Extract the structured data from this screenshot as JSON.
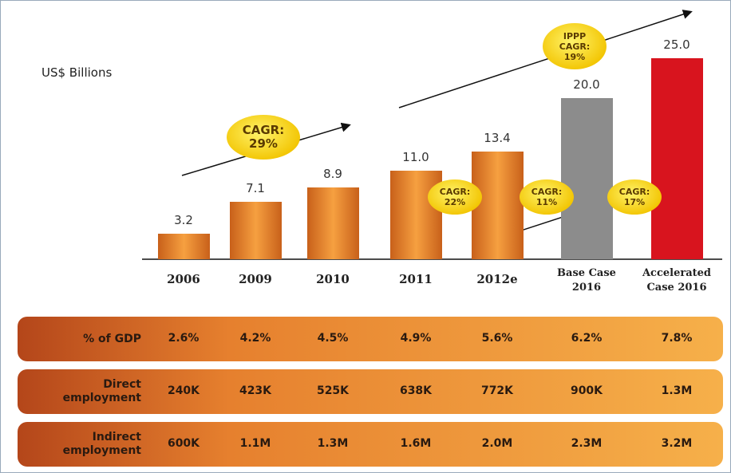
{
  "chart_data": {
    "type": "bar",
    "subtitle": "US$ Billions",
    "categories": [
      "2006",
      "2009",
      "2010",
      "2011",
      "2012e",
      "Base Case 2016",
      "Accelerated Case 2016"
    ],
    "values": [
      3.2,
      7.1,
      8.9,
      11,
      13.4,
      20,
      25
    ],
    "value_labels": [
      "3.2",
      "7.1",
      "8.9",
      "11.0",
      "13.4",
      "20.0",
      "25.0"
    ],
    "colors": [
      "#e8892a",
      "#e8892a",
      "#e8892a",
      "#e8892a",
      "#e8892a",
      "#8c8c8c",
      "#d8141e"
    ],
    "annotations": [
      "CAGR: 29%",
      "CAGR: 22%",
      "CAGR: 11%",
      "CAGR: 17%",
      "IPPP CAGR: 19%"
    ]
  },
  "table": {
    "rows": [
      [
        "% of GDP",
        "2.6%",
        "4.2%",
        "4.5%",
        "4.9%",
        "5.6%",
        "6.2%",
        "7.8%"
      ],
      [
        "Direct employment",
        "240K",
        "423K",
        "525K",
        "638K",
        "772K",
        "900K",
        "1.3M"
      ],
      [
        "Indirect employment",
        "600K",
        "1.1M",
        "1.3M",
        "1.6M",
        "2.0M",
        "2.3M",
        "3.2M"
      ]
    ]
  }
}
